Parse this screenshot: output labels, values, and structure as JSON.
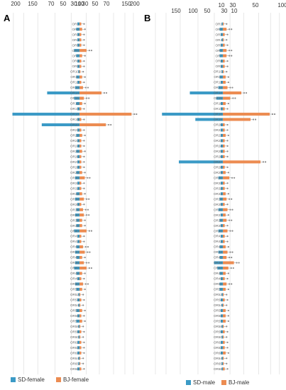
{
  "colors": {
    "sd": "#3b9ac6",
    "bj": "#ec8c52",
    "dot": "#8c8c8c",
    "grid": "#d8d8d8"
  },
  "chart_data": [
    {
      "panel": "A",
      "type": "bar",
      "orientation": "horizontal-diverging",
      "left_axis_ticks": [
        "200",
        "150",
        "70",
        "50",
        "30",
        "10"
      ],
      "right_axis_ticks": [
        "10",
        "30",
        "50",
        "70",
        "150",
        "200"
      ],
      "categories": [
        "OR1",
        "OR2",
        "OR3",
        "OR4",
        "OR5",
        "OR6",
        "OR7",
        "OR8",
        "OR9",
        "OR10",
        "OR11",
        "OR12",
        "OR13",
        "OR14",
        "OR15",
        "OR16",
        "OR17",
        "OR18",
        "OR19",
        "OR20",
        "OR21",
        "OR22",
        "OR23",
        "OR24",
        "OR25",
        "OR26",
        "OR27",
        "OR28",
        "OR29",
        "OR30",
        "OR31",
        "OR32",
        "OR33",
        "OR34",
        "OR35",
        "OR36",
        "OR37",
        "OR38",
        "OR39",
        "OR40",
        "OR41",
        "OR42",
        "OR43",
        "OR44",
        "OR45",
        "OR46",
        "OR47",
        "OR48",
        "OR49",
        "OR50",
        "OR51",
        "OR52",
        "OR53",
        "OR54",
        "OR55",
        "OR56",
        "OR57",
        "OR58",
        "OR59",
        "OR60",
        "OR61",
        "OR62",
        "OR63",
        "OR64",
        "OR65",
        "OR66"
      ],
      "series": [
        {
          "name": "SD-female",
          "values": [
            2,
            3,
            2,
            2,
            2,
            5,
            3,
            2,
            2,
            1,
            3,
            2,
            4,
            30,
            5,
            3,
            2,
            185,
            2,
            35,
            2,
            3,
            2,
            2,
            3,
            2,
            2,
            2,
            3,
            4,
            2,
            2,
            3,
            4,
            2,
            3,
            4,
            3,
            3,
            5,
            2,
            2,
            3,
            4,
            3,
            4,
            5,
            3,
            2,
            4,
            3,
            1,
            2,
            1,
            3,
            2,
            3,
            1,
            2,
            1,
            2,
            2,
            2,
            1,
            1,
            2
          ]
        },
        {
          "name": "BJ-female",
          "values": [
            2,
            3,
            2,
            2,
            2,
            8,
            3,
            2,
            2,
            1,
            3,
            2,
            4,
            25,
            5,
            3,
            2,
            165,
            2,
            30,
            2,
            3,
            2,
            2,
            3,
            2,
            2,
            2,
            3,
            6,
            2,
            2,
            3,
            5,
            2,
            4,
            5,
            3,
            3,
            8,
            2,
            2,
            4,
            6,
            3,
            5,
            8,
            3,
            2,
            4,
            3,
            1,
            2,
            1,
            3,
            2,
            3,
            1,
            2,
            1,
            2,
            2,
            2,
            1,
            1,
            2
          ]
        }
      ],
      "legend": [
        "SD-female",
        "BJ-female"
      ],
      "legend_position": "bottom"
    },
    {
      "panel": "B",
      "type": "bar",
      "orientation": "horizontal-diverging",
      "left_axis_ticks": [
        "150",
        "100",
        "50",
        "30",
        "10"
      ],
      "right_axis_ticks": [
        "10",
        "30",
        "50",
        "100"
      ],
      "categories": [
        "OR1",
        "OR2",
        "OR3",
        "OR4",
        "OR5",
        "OR6",
        "OR7",
        "OR8",
        "OR9",
        "OR10",
        "OR11",
        "OR12",
        "OR13",
        "OR14",
        "OR15",
        "OR16",
        "OR17",
        "OR18",
        "OR19",
        "OR20",
        "OR21",
        "OR22",
        "OR23",
        "OR24",
        "OR25",
        "OR26",
        "OR27",
        "OR28",
        "OR29",
        "OR30",
        "OR31",
        "OR32",
        "OR33",
        "OR34",
        "OR35",
        "OR36",
        "OR37",
        "OR38",
        "OR39",
        "OR40",
        "OR41",
        "OR42",
        "OR43",
        "OR44",
        "OR45",
        "OR46",
        "OR47",
        "OR48",
        "OR49",
        "OR50",
        "OR51",
        "OR52",
        "OR53",
        "OR54",
        "OR55",
        "OR56",
        "OR57",
        "OR58",
        "OR59",
        "OR60",
        "OR61",
        "OR62",
        "OR63",
        "OR64",
        "OR65",
        "OR66"
      ],
      "series": [
        {
          "name": "SD-male",
          "values": [
            1,
            3,
            2,
            1,
            2,
            3,
            3,
            2,
            2,
            1,
            3,
            2,
            4,
            30,
            6,
            2,
            2,
            140,
            25,
            2,
            2,
            2,
            2,
            2,
            2,
            2,
            40,
            2,
            2,
            4,
            2,
            2,
            2,
            3,
            2,
            4,
            2,
            3,
            2,
            4,
            2,
            2,
            3,
            4,
            3,
            8,
            5,
            3,
            2,
            3,
            3,
            1,
            2,
            1,
            2,
            2,
            2,
            1,
            2,
            1,
            2,
            2,
            2,
            1,
            1,
            1
          ]
        },
        {
          "name": "BJ-male",
          "values": [
            1,
            4,
            2,
            1,
            2,
            4,
            4,
            2,
            2,
            1,
            3,
            3,
            5,
            20,
            8,
            3,
            2,
            110,
            30,
            2,
            2,
            3,
            2,
            2,
            2,
            2,
            45,
            2,
            3,
            7,
            2,
            2,
            3,
            4,
            2,
            5,
            3,
            4,
            2,
            5,
            2,
            2,
            3,
            5,
            4,
            12,
            6,
            3,
            2,
            4,
            3,
            1,
            2,
            1,
            3,
            3,
            3,
            1,
            2,
            1,
            2,
            2,
            3,
            1,
            1,
            2
          ]
        }
      ],
      "legend": [
        "SD-male",
        "BJ-male"
      ],
      "legend_position": "bottom"
    }
  ]
}
